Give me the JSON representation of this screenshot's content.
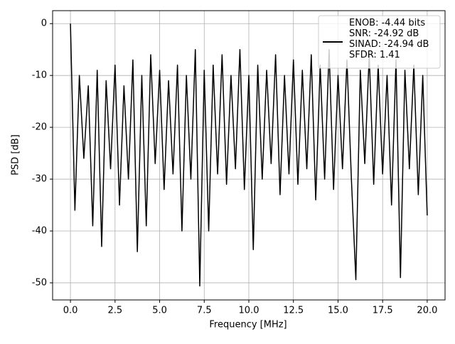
{
  "chart_data": {
    "type": "line",
    "xlabel": "Frequency [MHz]",
    "ylabel": "PSD [dB]",
    "x": [
      0,
      0.25,
      0.5,
      0.75,
      1,
      1.25,
      1.5,
      1.75,
      2,
      2.25,
      2.5,
      2.75,
      3,
      3.25,
      3.5,
      3.75,
      4,
      4.25,
      4.5,
      4.75,
      5,
      5.25,
      5.5,
      5.75,
      6,
      6.25,
      6.5,
      6.75,
      7,
      7.25,
      7.5,
      7.75,
      8,
      8.25,
      8.5,
      8.75,
      9,
      9.25,
      9.5,
      9.75,
      10,
      10.25,
      10.5,
      10.75,
      11,
      11.25,
      11.5,
      11.75,
      12,
      12.25,
      12.5,
      12.75,
      13,
      13.25,
      13.5,
      13.75,
      14,
      14.25,
      14.5,
      14.75,
      15,
      15.25,
      15.5,
      15.75,
      16,
      16.25,
      16.5,
      16.75,
      17,
      17.25,
      17.5,
      17.75,
      18,
      18.25,
      18.5,
      18.75,
      19,
      19.25,
      19.5,
      19.75,
      20
    ],
    "series": [
      {
        "name": "ENOB: -4.44 bits\nSNR: -24.92 dB\nSINAD: -24.94 dB\nSFDR: 1.41",
        "color": "#000000",
        "values": [
          0,
          -36,
          -10,
          -26,
          -12,
          -39,
          -9,
          -43,
          -11,
          -28,
          -8,
          -35,
          -12,
          -30,
          -7,
          -44,
          -10,
          -39,
          -6,
          -27,
          -9,
          -32,
          -11,
          -29,
          -8,
          -40,
          -10,
          -30,
          -5,
          -50.6,
          -9,
          -40,
          -8,
          -29,
          -6,
          -31,
          -10,
          -28,
          -5,
          -32,
          -10,
          -43.6,
          -8,
          -30,
          -9,
          -27,
          -6,
          -33,
          -10,
          -29,
          -7,
          -31,
          -9,
          -28,
          -6,
          -34,
          -8,
          -30,
          -5,
          -32,
          -10,
          -28,
          -7,
          -30,
          -49.4,
          -9,
          -27,
          -6,
          -31,
          -8,
          -29,
          -10,
          -35,
          -7,
          -49,
          -9,
          -28,
          -8,
          -33,
          -10,
          -37
        ]
      }
    ],
    "xlim": [
      -1,
      21
    ],
    "xticks": [
      {
        "value": 0,
        "label": "0.0"
      },
      {
        "value": 2.5,
        "label": "2.5"
      },
      {
        "value": 5,
        "label": "5.0"
      },
      {
        "value": 7.5,
        "label": "7.5"
      },
      {
        "value": 10,
        "label": "10.0"
      },
      {
        "value": 12.5,
        "label": "12.5"
      },
      {
        "value": 15,
        "label": "15.0"
      },
      {
        "value": 17.5,
        "label": "17.5"
      },
      {
        "value": 20,
        "label": "20.0"
      }
    ],
    "ylim": [
      -53.3,
      2.5
    ],
    "yticks": [
      -50,
      -40,
      -30,
      -20,
      -10,
      0
    ],
    "grid": true,
    "legend": "upper right"
  }
}
